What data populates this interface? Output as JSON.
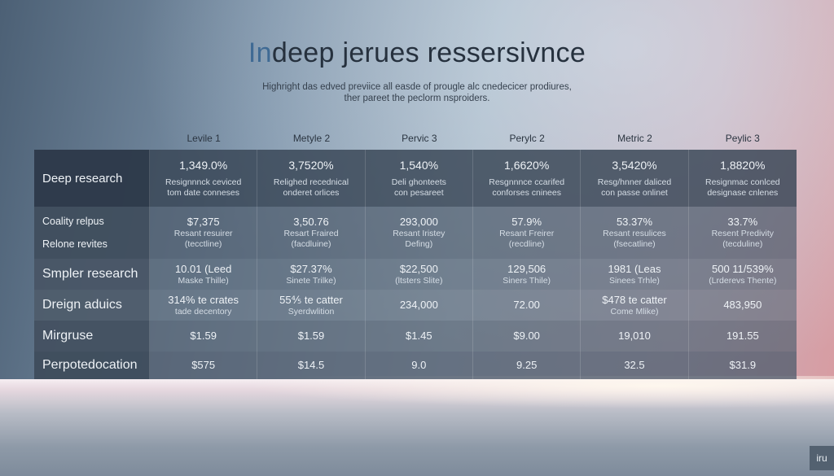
{
  "title": {
    "highlight": "In",
    "rest": "deep jerues ressersivnce"
  },
  "subtitle": [
    "Highright das edved previice all easde of prougle alc cnedecicer prodiures,",
    "ther pareet the peclorm nsproiders."
  ],
  "columns": [
    "Levile 1",
    "Metyle 2",
    "Pervic 3",
    "Perylc 2",
    "Metric 2",
    "Peylic 3"
  ],
  "rows": [
    {
      "kind": "hero",
      "label": "Deep research",
      "cells": [
        {
          "value": "1,349.0%",
          "sub": [
            "Resignnnck ceviced",
            "tom date conneses"
          ]
        },
        {
          "value": "3,7520%",
          "sub": [
            "Relighed recednical",
            "onderet orlices"
          ]
        },
        {
          "value": "1,540%",
          "sub": [
            "Deli ghonteets",
            "con pesareet"
          ]
        },
        {
          "value": "1,6620%",
          "sub": [
            "Resgnnnce ccarifed",
            "conforses cninees"
          ]
        },
        {
          "value": "3,5420%",
          "sub": [
            "Resg/hnner daliced",
            "con passe onlinet"
          ]
        },
        {
          "value": "1,8820%",
          "sub": [
            "Resignmac conlced",
            "designase cnlenes"
          ]
        }
      ]
    },
    {
      "kind": "pair",
      "labels": [
        "Coality relpus",
        "Relone revites"
      ],
      "cells": [
        {
          "value": "$7,375",
          "sub": [
            "Resant resuirer",
            "(tecctline)"
          ]
        },
        {
          "value": "3,50.76",
          "sub": [
            "Resart Fraired",
            "(facdluine)"
          ]
        },
        {
          "value": "293,000",
          "sub": [
            "Resant Iristey",
            "Defing)"
          ]
        },
        {
          "value": "57.9%",
          "sub": [
            "Resant Freirer",
            "(recdline)"
          ]
        },
        {
          "value": "53.37%",
          "sub": [
            "Resant resulices",
            "(fsecatline)"
          ]
        },
        {
          "value": "33.7%",
          "sub": [
            "Resent Predivity",
            "(tecduline)"
          ]
        }
      ]
    },
    {
      "kind": "a",
      "label": "Smpler research",
      "cells": [
        {
          "value": "10.01 (Leed",
          "sub": [
            "Maske Thille)"
          ]
        },
        {
          "value": "$27.37%",
          "sub": [
            "Sinete Trilke)"
          ]
        },
        {
          "value": "$22,500",
          "sub": [
            "(ltsters Slite)"
          ]
        },
        {
          "value": "129,506",
          "sub": [
            "Siners Thile)"
          ]
        },
        {
          "value": "1981 (Leas",
          "sub": [
            "Sinees Trhle)"
          ]
        },
        {
          "value": "500 11/539%",
          "sub": [
            "(Lrderevs Thente)"
          ]
        }
      ]
    },
    {
      "kind": "b",
      "label": "Dreign aduics",
      "cells": [
        {
          "value": "314% te crates",
          "sub": [
            "tade decentory"
          ]
        },
        {
          "value": "55⅘ te catter",
          "sub": [
            "Syerdwlition"
          ]
        },
        {
          "value": "234,000",
          "sub": []
        },
        {
          "value": "72.00",
          "sub": []
        },
        {
          "value": "$478 te catter",
          "sub": [
            "Come Mlike)"
          ]
        },
        {
          "value": "483,950",
          "sub": []
        }
      ]
    },
    {
      "kind": "c",
      "label": "Mirgruse",
      "cells": [
        {
          "value": "$1.59",
          "sub": []
        },
        {
          "value": "$1.59",
          "sub": []
        },
        {
          "value": "$1.45",
          "sub": []
        },
        {
          "value": "$9.00",
          "sub": []
        },
        {
          "value": "19,010",
          "sub": []
        },
        {
          "value": "191.55",
          "sub": []
        }
      ]
    },
    {
      "kind": "d",
      "label": "Perpotedocation",
      "cells": [
        {
          "value": "$575",
          "sub": []
        },
        {
          "value": "$14.5",
          "sub": []
        },
        {
          "value": "9.0",
          "sub": []
        },
        {
          "value": "9.25",
          "sub": []
        },
        {
          "value": "32.5",
          "sub": []
        },
        {
          "value": "$31.9",
          "sub": []
        }
      ]
    }
  ],
  "badge": "iru"
}
